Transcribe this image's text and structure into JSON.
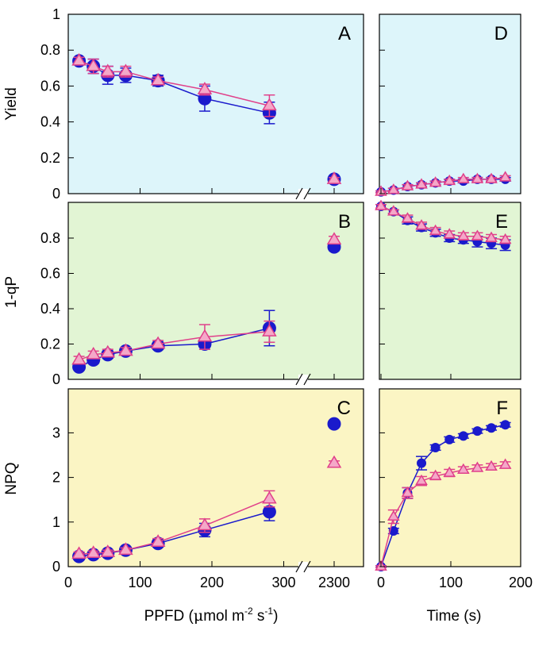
{
  "colors": {
    "series1": "#1a1acc",
    "series2": "#e0408a",
    "series2_fill": "#f4a8c8",
    "bg_yield": "#ddf5fa",
    "bg_qp": "#e2f5d4",
    "bg_npq": "#fbf5c4"
  },
  "x_axes": {
    "ppfd": {
      "title_prefix": "PPFD (",
      "title_mu": "μ",
      "title_mol_m": "mol m",
      "title_exp1": "-2",
      "title_s": " s",
      "title_exp2": "-1",
      "title_suffix": ")",
      "ticks": [
        "0",
        "100",
        "200",
        "300"
      ],
      "break_tick": "2300"
    },
    "time": {
      "title": "Time (s)",
      "ticks": [
        "0",
        "100",
        "200"
      ]
    }
  },
  "y_axes": {
    "yield": {
      "title": "Yield",
      "ticks": [
        "0",
        "0.2",
        "0.4",
        "0.6",
        "0.8",
        "1"
      ]
    },
    "qp": {
      "title": "1-qP",
      "ticks": [
        "0",
        "0.2",
        "0.4",
        "0.6",
        "0.8"
      ]
    },
    "npq": {
      "title": "NPQ",
      "ticks": [
        "0",
        "1",
        "2",
        "3"
      ]
    }
  },
  "chart_data": [
    {
      "type": "line",
      "panel": "A",
      "x_axis": "ppfd",
      "ylabel": "Yield",
      "ylim": [
        0,
        1
      ],
      "series": [
        {
          "marker": "circle",
          "x": [
            15,
            35,
            55,
            80,
            125,
            190,
            280,
            2300
          ],
          "y": [
            0.74,
            0.71,
            0.66,
            0.66,
            0.63,
            0.53,
            0.45,
            0.08
          ],
          "err": [
            0.02,
            0.04,
            0.05,
            0.04,
            0.03,
            0.07,
            0.06,
            0.01
          ]
        },
        {
          "marker": "triangle",
          "x": [
            15,
            35,
            55,
            80,
            125,
            190,
            280,
            2300
          ],
          "y": [
            0.74,
            0.71,
            0.68,
            0.68,
            0.63,
            0.58,
            0.49,
            0.08
          ],
          "err": [
            0.02,
            0.04,
            0.03,
            0.03,
            0.02,
            0.03,
            0.06,
            0.01
          ]
        }
      ]
    },
    {
      "type": "line",
      "panel": "B",
      "x_axis": "ppfd",
      "ylabel": "1-qP",
      "ylim": [
        0,
        1
      ],
      "series": [
        {
          "marker": "circle",
          "x": [
            15,
            35,
            55,
            80,
            125,
            190,
            280,
            2300
          ],
          "y": [
            0.07,
            0.11,
            0.14,
            0.16,
            0.19,
            0.2,
            0.29,
            0.75
          ],
          "err": [
            0.01,
            0.02,
            0.02,
            0.02,
            0.02,
            0.03,
            0.1,
            0.02
          ]
        },
        {
          "marker": "triangle",
          "x": [
            15,
            35,
            55,
            80,
            125,
            190,
            280,
            2300
          ],
          "y": [
            0.11,
            0.14,
            0.15,
            0.16,
            0.2,
            0.24,
            0.27,
            0.79
          ],
          "err": [
            0.02,
            0.02,
            0.02,
            0.02,
            0.02,
            0.07,
            0.06,
            0.02
          ]
        }
      ]
    },
    {
      "type": "line",
      "panel": "C",
      "x_axis": "ppfd",
      "ylabel": "NPQ",
      "ylim": [
        0,
        3.6
      ],
      "series": [
        {
          "marker": "circle",
          "x": [
            15,
            35,
            55,
            80,
            125,
            190,
            280,
            2300
          ],
          "y": [
            0.23,
            0.27,
            0.3,
            0.37,
            0.52,
            0.82,
            1.23,
            3.2
          ],
          "err": [
            0.04,
            0.05,
            0.05,
            0.05,
            0.08,
            0.15,
            0.2,
            0.05
          ]
        },
        {
          "marker": "triangle",
          "x": [
            15,
            35,
            55,
            80,
            125,
            190,
            280,
            2300
          ],
          "y": [
            0.28,
            0.3,
            0.32,
            0.37,
            0.55,
            0.92,
            1.52,
            2.32
          ],
          "err": [
            0.05,
            0.05,
            0.05,
            0.05,
            0.08,
            0.15,
            0.18,
            0.05
          ]
        }
      ]
    },
    {
      "type": "line",
      "panel": "D",
      "x_axis": "time",
      "ylabel": "Yield",
      "ylim": [
        0,
        1
      ],
      "series": [
        {
          "marker": "circle",
          "x": [
            0,
            18,
            38,
            58,
            78,
            98,
            118,
            138,
            158,
            178
          ],
          "y": [
            0.01,
            0.02,
            0.04,
            0.05,
            0.06,
            0.07,
            0.07,
            0.08,
            0.08,
            0.08
          ],
          "err": [
            0.005,
            0.01,
            0.01,
            0.01,
            0.01,
            0.01,
            0.01,
            0.01,
            0.01,
            0.01
          ]
        },
        {
          "marker": "triangle",
          "x": [
            0,
            18,
            38,
            58,
            78,
            98,
            118,
            138,
            158,
            178
          ],
          "y": [
            0.01,
            0.02,
            0.04,
            0.05,
            0.06,
            0.07,
            0.08,
            0.08,
            0.08,
            0.09
          ],
          "err": [
            0.005,
            0.01,
            0.01,
            0.01,
            0.01,
            0.01,
            0.01,
            0.01,
            0.01,
            0.01
          ]
        }
      ]
    },
    {
      "type": "line",
      "panel": "E",
      "x_axis": "time",
      "ylabel": "1-qP",
      "ylim": [
        0,
        1
      ],
      "series": [
        {
          "marker": "circle",
          "x": [
            0,
            18,
            38,
            58,
            78,
            98,
            118,
            138,
            158,
            178
          ],
          "y": [
            0.98,
            0.95,
            0.9,
            0.86,
            0.83,
            0.8,
            0.79,
            0.78,
            0.77,
            0.76
          ],
          "err": [
            0.01,
            0.01,
            0.02,
            0.02,
            0.02,
            0.02,
            0.02,
            0.03,
            0.03,
            0.03
          ]
        },
        {
          "marker": "triangle",
          "x": [
            0,
            18,
            38,
            58,
            78,
            98,
            118,
            138,
            158,
            178
          ],
          "y": [
            0.98,
            0.95,
            0.91,
            0.87,
            0.84,
            0.82,
            0.81,
            0.81,
            0.8,
            0.79
          ],
          "err": [
            0.01,
            0.01,
            0.02,
            0.02,
            0.02,
            0.02,
            0.02,
            0.02,
            0.02,
            0.02
          ]
        }
      ]
    },
    {
      "type": "line",
      "panel": "F",
      "x_axis": "time",
      "ylabel": "NPQ",
      "ylim": [
        0,
        3.6
      ],
      "series": [
        {
          "marker": "circle",
          "x": [
            0,
            18,
            38,
            58,
            78,
            98,
            118,
            138,
            158,
            178
          ],
          "y": [
            0,
            0.8,
            1.65,
            2.32,
            2.67,
            2.85,
            2.93,
            3.04,
            3.11,
            3.18
          ],
          "err": [
            0.02,
            0.06,
            0.12,
            0.15,
            0.06,
            0.06,
            0.05,
            0.05,
            0.05,
            0.05
          ]
        },
        {
          "marker": "triangle",
          "x": [
            0,
            18,
            38,
            58,
            78,
            98,
            118,
            138,
            158,
            178
          ],
          "y": [
            0,
            1.12,
            1.65,
            1.92,
            2.03,
            2.1,
            2.17,
            2.21,
            2.24,
            2.28
          ],
          "err": [
            0.02,
            0.15,
            0.12,
            0.1,
            0.08,
            0.08,
            0.07,
            0.07,
            0.07,
            0.07
          ]
        }
      ]
    }
  ]
}
